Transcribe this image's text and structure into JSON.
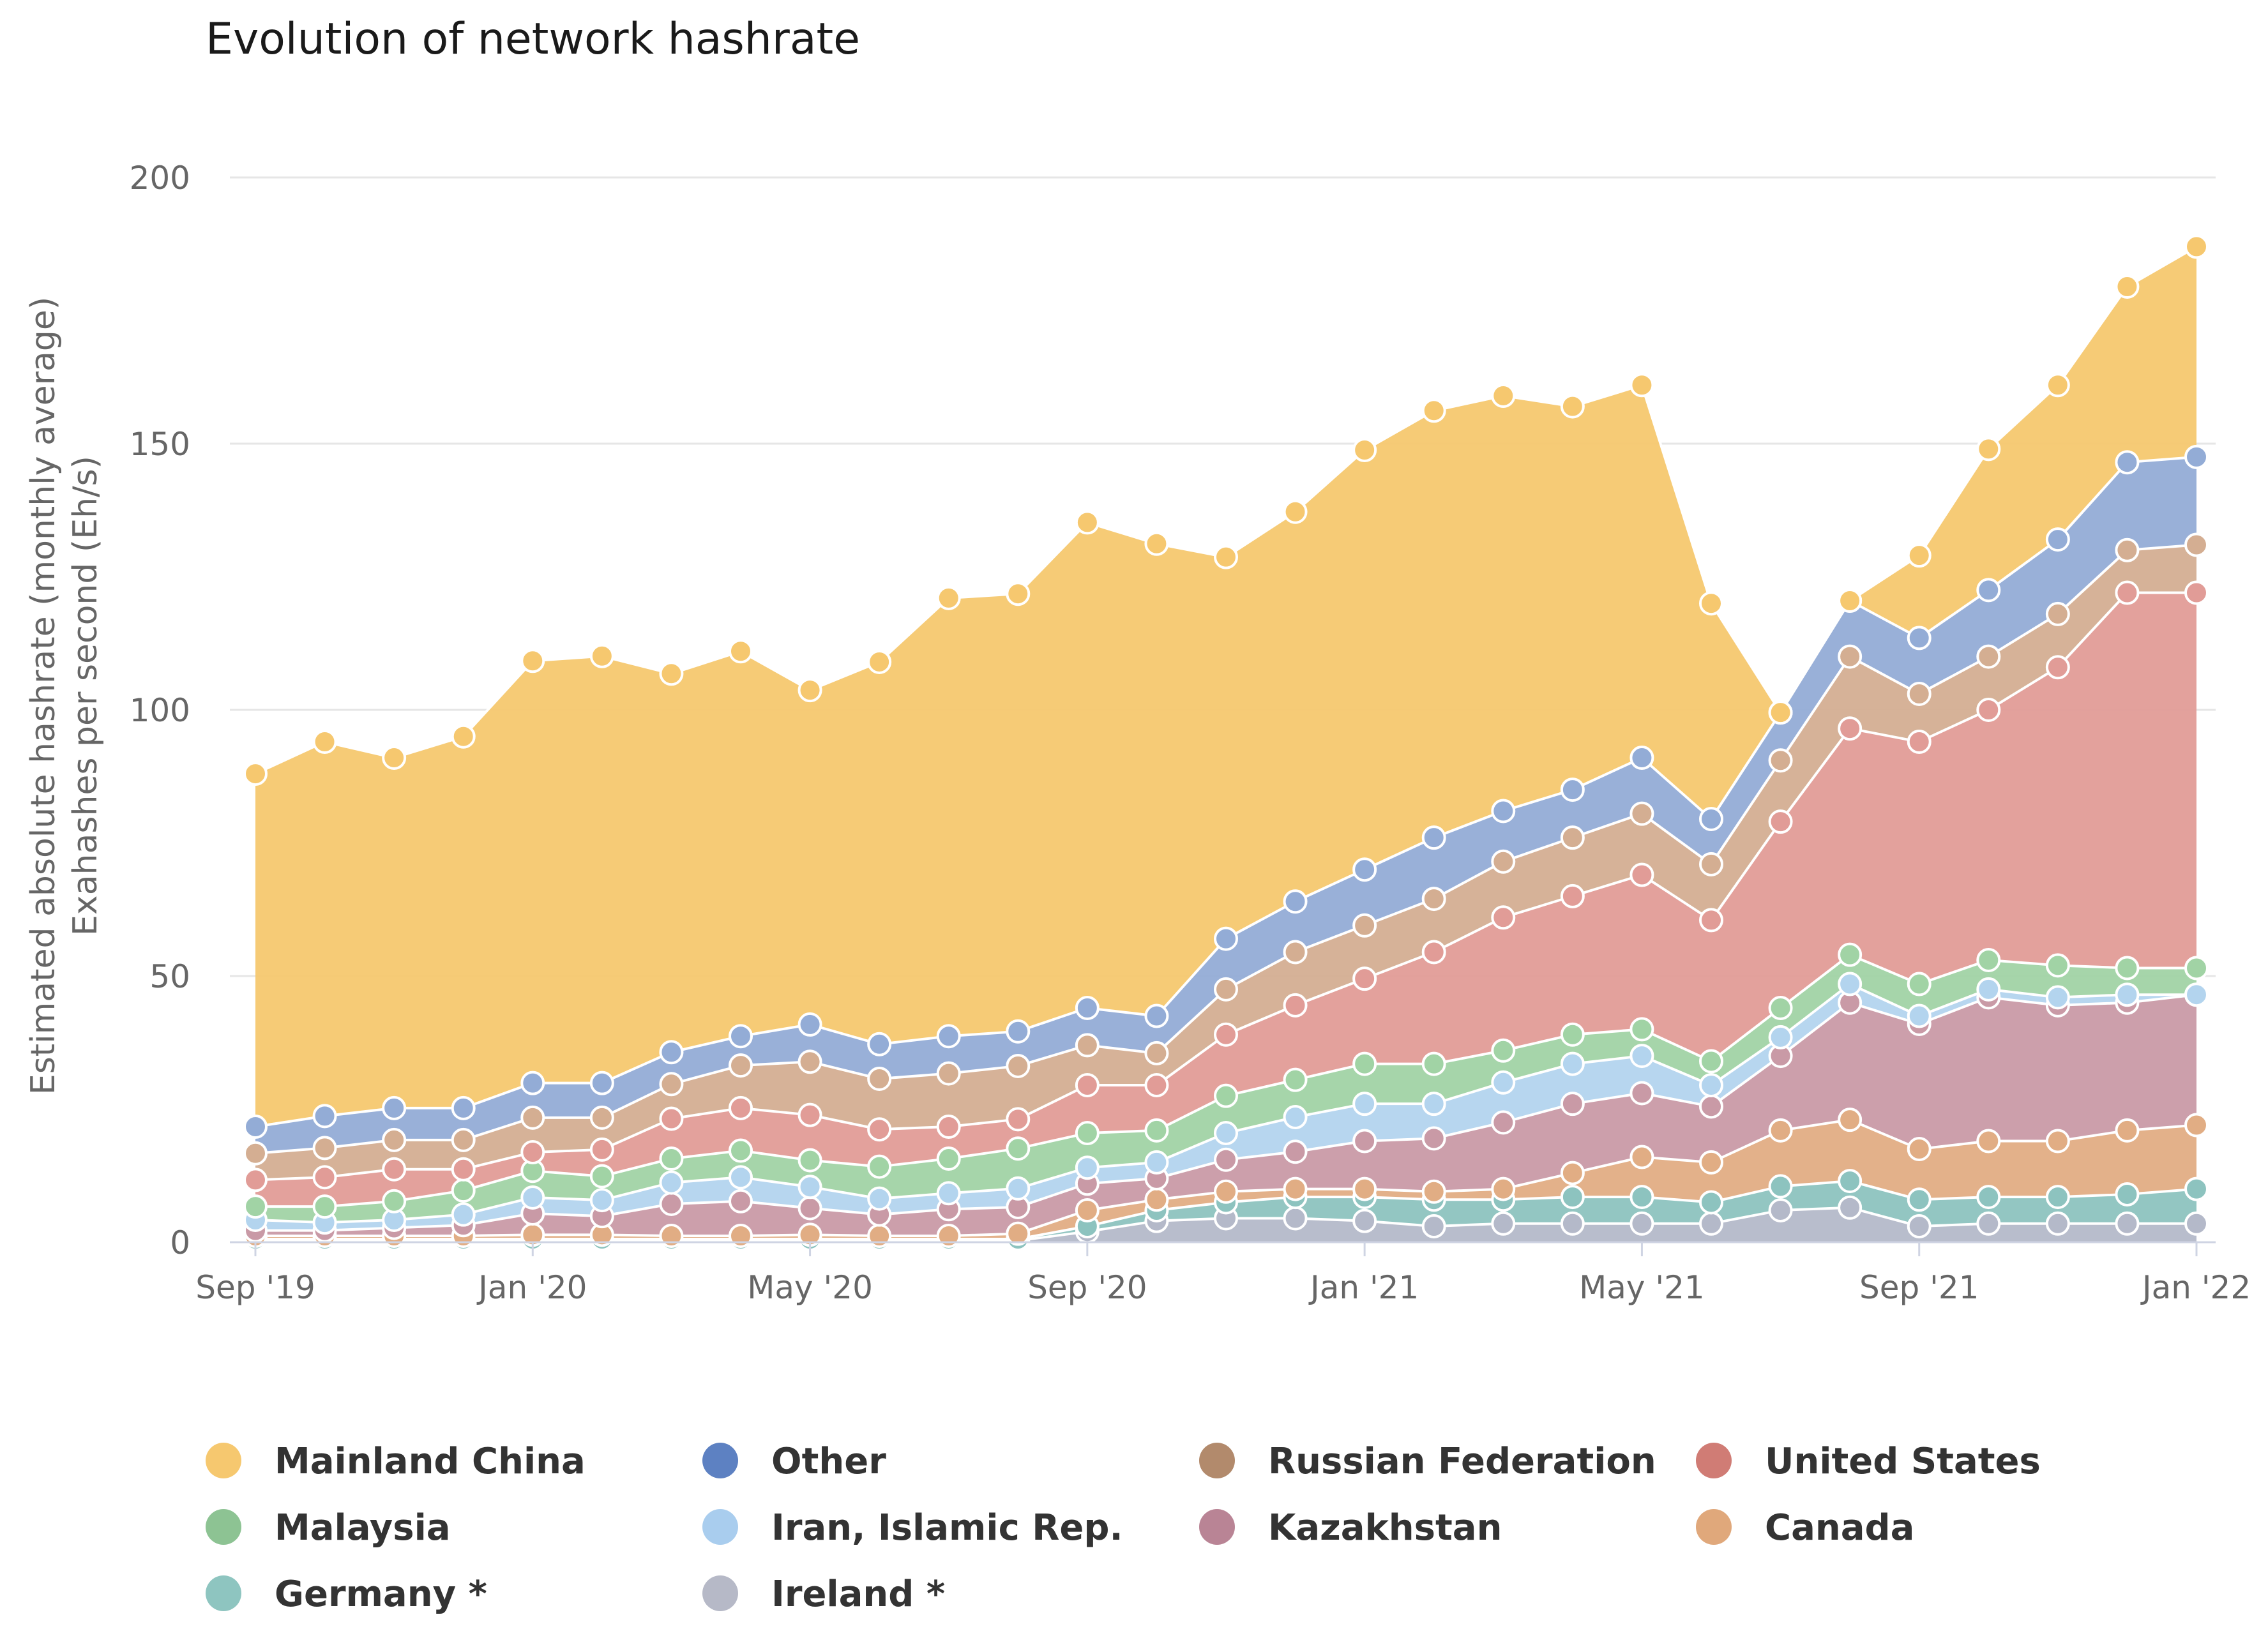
{
  "chart_data": {
    "type": "area",
    "stacked": true,
    "title": "Evolution of network hashrate",
    "ylabel_lines": [
      "Estimated absolute hashrate (monthly average)",
      "Exahashes per second (Eh/s)"
    ],
    "xlabel": "",
    "ylim": [
      0,
      200
    ],
    "yticks": [
      0,
      50,
      100,
      150,
      200
    ],
    "xticks": [
      {
        "label": "Sep '19",
        "index": 0
      },
      {
        "label": "Jan '20",
        "index": 4
      },
      {
        "label": "May '20",
        "index": 8
      },
      {
        "label": "Sep '20",
        "index": 12
      },
      {
        "label": "Jan '21",
        "index": 16
      },
      {
        "label": "May '21",
        "index": 20
      },
      {
        "label": "Sep '21",
        "index": 24
      },
      {
        "label": "Jan '22",
        "index": 28
      }
    ],
    "months": [
      "2019-09",
      "2019-10",
      "2019-11",
      "2019-12",
      "2020-01",
      "2020-02",
      "2020-03",
      "2020-04",
      "2020-05",
      "2020-06",
      "2020-07",
      "2020-08",
      "2020-09",
      "2020-10",
      "2020-11",
      "2020-12",
      "2021-01",
      "2021-02",
      "2021-03",
      "2021-04",
      "2021-05",
      "2021-06",
      "2021-07",
      "2021-08",
      "2021-09",
      "2021-10",
      "2021-11",
      "2021-12",
      "2022-01"
    ],
    "series": [
      {
        "name": "Ireland *",
        "color": "#b4b9c9",
        "values": [
          0.3,
          0.3,
          0.3,
          0.3,
          0.3,
          0.3,
          0.3,
          0.3,
          0.3,
          0.3,
          0.3,
          0.3,
          2,
          4,
          4.5,
          4.5,
          4,
          3,
          3.5,
          3.5,
          3.5,
          3.5,
          6,
          6.5,
          3,
          3.5,
          3.5,
          3.5,
          3.5
        ]
      },
      {
        "name": "Germany *",
        "color": "#8dc3bf",
        "values": [
          0.3,
          0.3,
          0.3,
          0.3,
          0.3,
          0.3,
          0.3,
          0.3,
          0.3,
          0.3,
          0.3,
          0.3,
          1,
          2,
          3,
          4,
          4.5,
          5,
          4.5,
          5,
          5,
          4,
          4.5,
          5,
          5,
          5,
          5,
          5.5,
          6.5
        ]
      },
      {
        "name": "Canada",
        "color": "#e1ad84",
        "values": [
          0.6,
          0.6,
          0.6,
          0.6,
          0.8,
          0.8,
          0.6,
          0.6,
          0.8,
          0.6,
          0.6,
          1,
          3,
          2,
          2,
          1.5,
          1.5,
          1.5,
          2,
          4.5,
          7.5,
          7.5,
          10.5,
          11.5,
          9.5,
          10.5,
          10.5,
          12,
          12
        ]
      },
      {
        "name": "Kazakhstan",
        "color": "#c99aa6",
        "values": [
          1,
          1,
          1.5,
          2,
          4,
          3.5,
          6,
          6.5,
          5,
          4,
          5,
          5,
          5,
          4,
          6,
          7,
          9,
          10,
          12.5,
          13,
          12,
          10.5,
          14,
          22,
          23.5,
          27,
          25.5,
          24,
          24.5
        ]
      },
      {
        "name": "Iran, Islamic Rep.",
        "color": "#b3d4ee",
        "values": [
          2,
          1.5,
          1.5,
          2,
          3,
          3,
          4,
          4.5,
          4,
          3,
          3,
          3.5,
          3,
          3,
          5,
          6.5,
          7,
          6.5,
          7.5,
          7.5,
          7,
          4,
          3.5,
          3.5,
          1.5,
          1.5,
          1.5,
          1.5,
          0
        ]
      },
      {
        "name": "Malaysia",
        "color": "#a1d3a5",
        "values": [
          2.5,
          3,
          3.5,
          4.5,
          5,
          4.5,
          4.5,
          5,
          5,
          6,
          6.5,
          7.5,
          6.5,
          6,
          7,
          7,
          7.5,
          7.5,
          6,
          5.5,
          5,
          4.5,
          5.5,
          5.5,
          6,
          5.5,
          6,
          5,
          5
        ]
      },
      {
        "name": "United States",
        "color": "#e19c97",
        "values": [
          5,
          5.5,
          6,
          4,
          3.5,
          5,
          7.5,
          8,
          8.5,
          7,
          6,
          5.5,
          9,
          8.5,
          11.5,
          14,
          16,
          21,
          25,
          26,
          29,
          26.5,
          35,
          42.5,
          45.5,
          47,
          56,
          70.5,
          70.5
        ]
      },
      {
        "name": "Russian Federation",
        "color": "#d4ae92",
        "values": [
          5,
          5.5,
          5.5,
          5.5,
          6.5,
          6,
          6.5,
          8,
          10,
          9.5,
          10,
          10,
          7.5,
          6,
          8.5,
          10,
          10,
          10,
          10.5,
          11,
          11.5,
          10.5,
          11.5,
          13.5,
          9,
          10,
          10,
          8,
          9
        ]
      },
      {
        "name": "Other",
        "color": "#93acd6",
        "values": [
          5,
          6,
          6,
          6,
          6.5,
          6.5,
          6,
          5.5,
          7,
          6.5,
          7,
          6.5,
          7,
          7,
          9.5,
          9.5,
          10.5,
          11.5,
          9.5,
          9,
          10.5,
          8.5,
          9,
          10.5,
          10.5,
          12.5,
          14,
          16.5,
          16.5
        ]
      },
      {
        "name": "Mainland China",
        "color": "#f6c86f",
        "values": [
          66.3,
          70.3,
          65.8,
          69.8,
          79.3,
          80.2,
          71.1,
          72.3,
          62.8,
          71.8,
          82.3,
          82.2,
          91.2,
          88.7,
          71.7,
          73.2,
          78.8,
          80.2,
          78,
          72,
          70,
          40.5,
          0,
          0,
          15.5,
          26.5,
          29,
          33,
          39.5
        ]
      }
    ]
  },
  "legend": {
    "items": [
      {
        "name": "Mainland China",
        "color": "#f6c86f"
      },
      {
        "name": "Other",
        "color": "#5d81c2"
      },
      {
        "name": "Russian Federation",
        "color": "#b28a6c"
      },
      {
        "name": "United States",
        "color": "#d07c75"
      },
      {
        "name": "Malaysia",
        "color": "#8dc393"
      },
      {
        "name": "Iran, Islamic Rep.",
        "color": "#a9cdee"
      },
      {
        "name": "Kazakhstan",
        "color": "#b98495"
      },
      {
        "name": "Canada",
        "color": "#e0a87b"
      },
      {
        "name": "Germany *",
        "color": "#8ec5c0"
      },
      {
        "name": "Ireland *",
        "color": "#b6b9c7"
      }
    ]
  }
}
